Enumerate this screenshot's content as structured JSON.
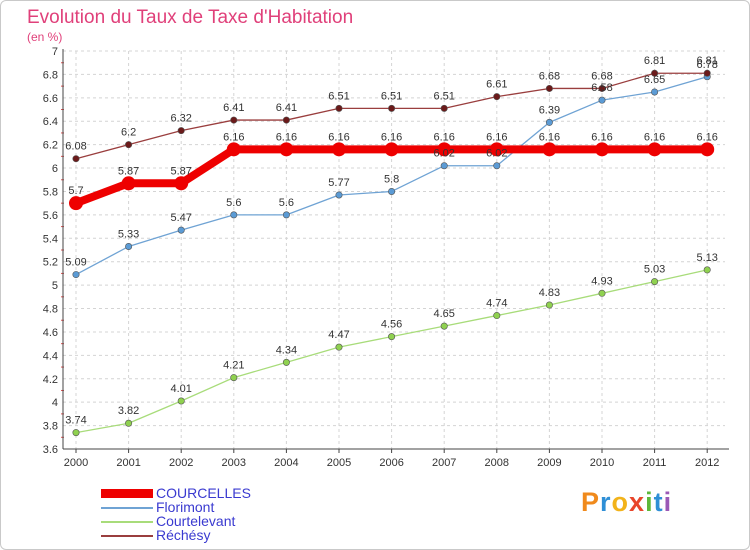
{
  "header": {
    "title": "Evolution du Taux de Taxe d'Habitation",
    "subtitle": "(en %)"
  },
  "logo": {
    "letters": [
      "P",
      "r",
      "o",
      "x",
      "i",
      "t",
      "i"
    ],
    "colors": [
      "#f08a1c",
      "#2f8fd6",
      "#f2b31b",
      "#e8452a",
      "#5db83a",
      "#2f8fd6",
      "#9b59b6"
    ]
  },
  "chart_data": {
    "type": "line",
    "title": "Evolution du Taux de Taxe d'Habitation",
    "ylabel": "(en %)",
    "ylim": [
      3.6,
      7
    ],
    "yticks": [
      3.6,
      3.8,
      4,
      4.2,
      4.4,
      4.6,
      4.8,
      5,
      5.2,
      5.4,
      5.6,
      5.8,
      6,
      6.2,
      6.4,
      6.6,
      6.8,
      7
    ],
    "ytick_labels": [
      "3.6",
      "3.8",
      "4",
      "4.2",
      "4.4",
      "4.6",
      "4.8",
      "5",
      "5.2",
      "5.4",
      "5.6",
      "5.8",
      "6",
      "6.2",
      "6.4",
      "6.6",
      "6.8",
      "7"
    ],
    "x": [
      "2000",
      "2001",
      "2002",
      "2003",
      "2004",
      "2005",
      "2006",
      "2007",
      "2008",
      "2009",
      "2010",
      "2011",
      "2012"
    ],
    "grid": true,
    "legend_position": "bottom-left",
    "series": [
      {
        "name": "COURCELLES",
        "color": "#ee0000",
        "marker_fill": "#ee0000",
        "emphasis": true,
        "values": [
          5.7,
          5.87,
          5.87,
          6.16,
          6.16,
          6.16,
          6.16,
          6.16,
          6.16,
          6.16,
          6.16,
          6.16,
          6.16
        ],
        "labels": [
          "5.7",
          "5.87",
          "5.87",
          "6.16",
          "6.16",
          "6.16",
          "6.16",
          "6.16",
          "6.16",
          "6.16",
          "6.16",
          "6.16",
          "6.16"
        ]
      },
      {
        "name": "Florimont",
        "color": "#6fa3d4",
        "marker_fill": "#5b9bd5",
        "emphasis": false,
        "values": [
          5.09,
          5.33,
          5.47,
          5.6,
          5.6,
          5.77,
          5.8,
          6.02,
          6.02,
          6.39,
          6.58,
          6.65,
          6.78
        ],
        "labels": [
          "5.09",
          "5.33",
          "5.47",
          "5.6",
          "5.6",
          "5.77",
          "5.8",
          "6.02",
          "6.02",
          "6.39",
          "6.58",
          "6.65",
          "6.78"
        ]
      },
      {
        "name": "Courtelevant",
        "color": "#a8dc7a",
        "marker_fill": "#8fd14f",
        "emphasis": false,
        "values": [
          3.74,
          3.82,
          4.01,
          4.21,
          4.34,
          4.47,
          4.56,
          4.65,
          4.74,
          4.83,
          4.93,
          5.03,
          5.13
        ],
        "labels": [
          "3.74",
          "3.82",
          "4.01",
          "4.21",
          "4.34",
          "4.47",
          "4.56",
          "4.65",
          "4.74",
          "4.83",
          "4.93",
          "5.03",
          "5.13"
        ]
      },
      {
        "name": "Réchésy",
        "color": "#9a3e3e",
        "marker_fill": "#6b1a1a",
        "emphasis": false,
        "values": [
          6.08,
          6.2,
          6.32,
          6.41,
          6.41,
          6.51,
          6.51,
          6.51,
          6.61,
          6.68,
          6.68,
          6.81,
          6.81
        ],
        "labels": [
          "6.08",
          "6.2",
          "6.32",
          "6.41",
          "6.41",
          "6.51",
          "6.51",
          "6.51",
          "6.61",
          "6.68",
          "6.68",
          "6.81",
          "6.81"
        ]
      }
    ]
  }
}
